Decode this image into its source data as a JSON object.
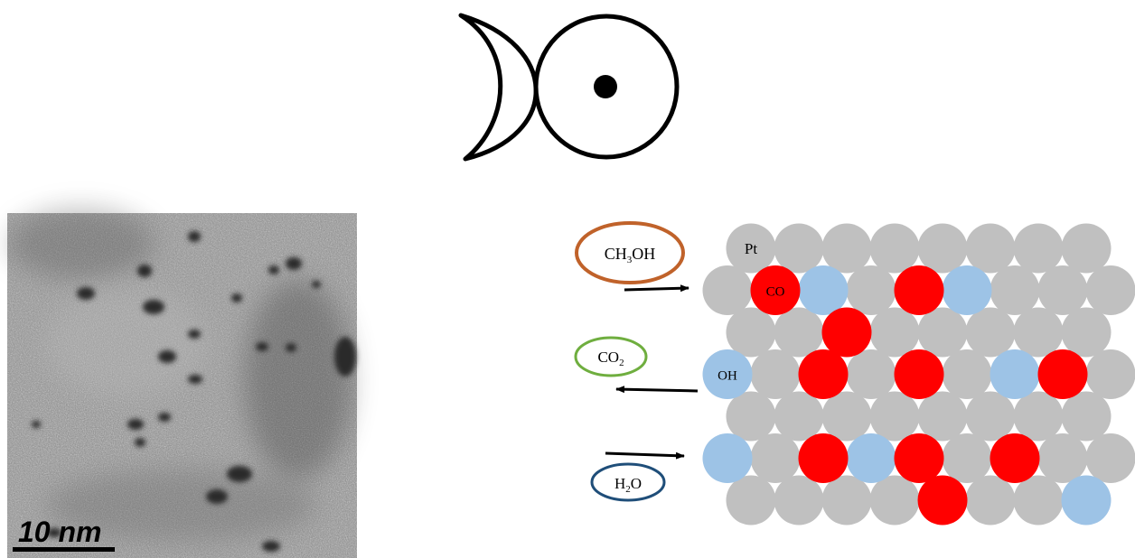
{
  "logo": {
    "name": "crescent-and-circled-dot-symbol"
  },
  "tem_image": {
    "scale_bar_label": "10 nm"
  },
  "reactants": {
    "methanol": {
      "main": "CH",
      "sub": "3",
      "tail": "OH",
      "color": "#c0622a"
    },
    "carbon_dioxide": {
      "main": "CO",
      "sub": "2",
      "tail": "",
      "color": "#6fae3f"
    },
    "water": {
      "main": "H",
      "sub": "2",
      "tail": "O",
      "color": "#1f4e79"
    }
  },
  "surface": {
    "metal_label": "Pt",
    "co_label": "CO",
    "oh_label": "OH",
    "colors": {
      "pt": "#c0c0c0",
      "co": "#ff0000",
      "oh": "#9dc3e6"
    },
    "rows": [
      [
        "pt",
        "pt",
        "pt",
        "pt",
        "pt",
        "pt",
        "pt",
        "pt"
      ],
      [
        "pt",
        "co",
        "oh",
        "pt",
        "co",
        "oh",
        "pt",
        "pt",
        "pt"
      ],
      [
        "pt",
        "pt",
        "co",
        "pt",
        "pt",
        "pt",
        "pt",
        "pt"
      ],
      [
        "oh",
        "pt",
        "co",
        "pt",
        "co",
        "pt",
        "oh",
        "co",
        "pt"
      ],
      [
        "pt",
        "pt",
        "pt",
        "pt",
        "pt",
        "pt",
        "pt",
        "pt"
      ],
      [
        "oh",
        "pt",
        "co",
        "oh",
        "co",
        "pt",
        "co",
        "pt",
        "pt"
      ],
      [
        "pt",
        "pt",
        "pt",
        "pt",
        "co",
        "pt",
        "pt",
        "oh"
      ]
    ]
  }
}
